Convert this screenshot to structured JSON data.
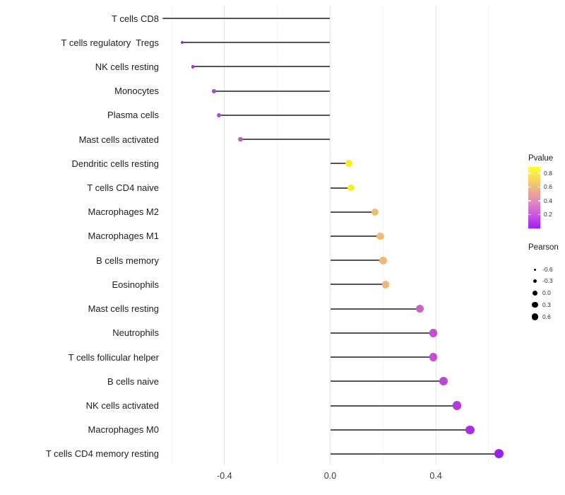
{
  "chart_data": {
    "type": "scatter",
    "variant": "lollipop",
    "title": "",
    "xlabel": "",
    "ylabel": "",
    "xlim": [
      -0.68,
      0.68
    ],
    "grid": "vertical-only",
    "baseline": 0.0,
    "x_axis": {
      "major_ticks": [
        -0.4,
        0.0,
        0.4
      ],
      "major_tick_labels": [
        "-0.4",
        "0.0",
        "0.4"
      ],
      "minor_ticks": [
        -0.6,
        -0.2,
        0.2,
        0.6
      ]
    },
    "rows": [
      {
        "label": "T cells CD8",
        "pearson": -0.63,
        "pvalue": 0.01,
        "color": "#9a2bd1"
      },
      {
        "label": "T cells regulatory  Tregs",
        "pearson": -0.56,
        "pvalue": 0.03,
        "color": "#9c31cf"
      },
      {
        "label": "NK cells resting",
        "pearson": -0.52,
        "pvalue": 0.05,
        "color": "#9f37cd"
      },
      {
        "label": "Monocytes",
        "pearson": -0.44,
        "pvalue": 0.1,
        "color": "#a84bc9"
      },
      {
        "label": "Plasma cells",
        "pearson": -0.42,
        "pvalue": 0.12,
        "color": "#aa50c8"
      },
      {
        "label": "Mast cells activated",
        "pearson": -0.34,
        "pvalue": 0.17,
        "color": "#b55fc5"
      },
      {
        "label": "Dendritic cells resting",
        "pearson": 0.07,
        "pvalue": 0.87,
        "color": "#f9ed1e"
      },
      {
        "label": "T cells CD4 naive",
        "pearson": 0.08,
        "pvalue": 0.86,
        "color": "#f9ed1e"
      },
      {
        "label": "Macrophages M2",
        "pearson": 0.17,
        "pvalue": 0.57,
        "color": "#f0bc75"
      },
      {
        "label": "Macrophages M1",
        "pearson": 0.19,
        "pvalue": 0.55,
        "color": "#f0ba74"
      },
      {
        "label": "B cells memory",
        "pearson": 0.2,
        "pvalue": 0.54,
        "color": "#f0b975"
      },
      {
        "label": "Eosinophils",
        "pearson": 0.21,
        "pvalue": 0.52,
        "color": "#efb478"
      },
      {
        "label": "Mast cells resting",
        "pearson": 0.34,
        "pvalue": 0.3,
        "color": "#cb62c6"
      },
      {
        "label": "Neutrophils",
        "pearson": 0.39,
        "pvalue": 0.24,
        "color": "#c44fd0"
      },
      {
        "label": "T cells follicular helper",
        "pearson": 0.39,
        "pvalue": 0.24,
        "color": "#c44fd0"
      },
      {
        "label": "B cells naive",
        "pearson": 0.43,
        "pvalue": 0.2,
        "color": "#ba49d2"
      },
      {
        "label": "NK cells activated",
        "pearson": 0.48,
        "pvalue": 0.14,
        "color": "#b13bdc"
      },
      {
        "label": "Macrophages M0",
        "pearson": 0.53,
        "pvalue": 0.1,
        "color": "#a92fe2"
      },
      {
        "label": "T cells CD4 memory resting",
        "pearson": 0.64,
        "pvalue": 0.02,
        "color": "#9a20ee"
      }
    ],
    "legends": {
      "pvalue": {
        "title": "Pvalue",
        "tick_labels": [
          "0.8",
          "0.6",
          "0.4",
          "0.2"
        ],
        "gradient_top_to_bottom": [
          "#ffff2d",
          "#f8d75f",
          "#ecaa8c",
          "#de83c4",
          "#c950e2",
          "#a01ff0"
        ]
      },
      "pearson": {
        "title": "Pearson",
        "item_labels": [
          "-0.6",
          "-0.3",
          "0.0",
          "0.3",
          "0.6"
        ],
        "item_values": [
          -0.6,
          -0.3,
          0.0,
          0.3,
          0.6
        ]
      }
    },
    "colors": {
      "stem": "#545454",
      "grid_major": "#e4e4e4",
      "grid_minor": "#f3f3f3",
      "axis_text": "#373737"
    }
  }
}
